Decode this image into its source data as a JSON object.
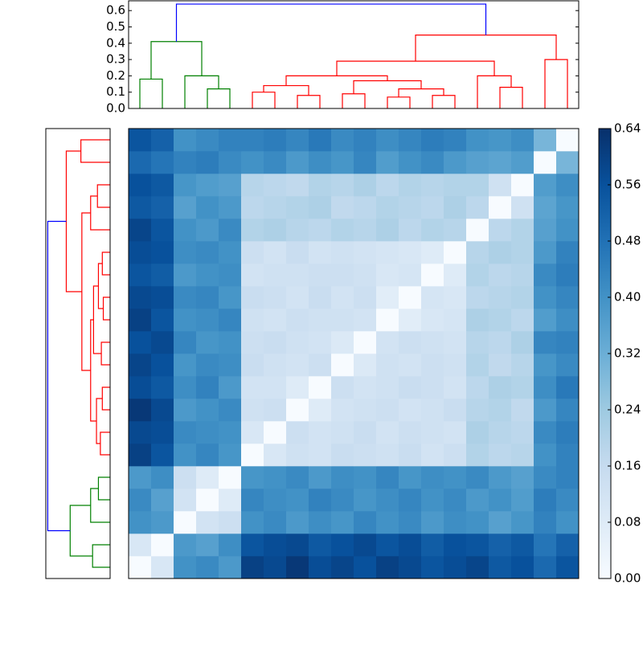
{
  "chart_data": {
    "type": "clustermap",
    "matrix": [
      [
        0,
        0.1,
        0.4,
        0.42,
        0.38,
        0.6,
        0.58,
        0.62,
        0.57,
        0.59,
        0.56,
        0.6,
        0.58,
        0.55,
        0.57,
        0.59,
        0.54,
        0.56,
        0.5,
        0.55
      ],
      [
        0.1,
        0,
        0.38,
        0.36,
        0.41,
        0.55,
        0.57,
        0.58,
        0.54,
        0.56,
        0.58,
        0.55,
        0.57,
        0.53,
        0.56,
        0.55,
        0.52,
        0.54,
        0.47,
        0.52
      ],
      [
        0.4,
        0.38,
        0,
        0.12,
        0.14,
        0.4,
        0.42,
        0.38,
        0.41,
        0.39,
        0.43,
        0.4,
        0.42,
        0.38,
        0.41,
        0.4,
        0.36,
        0.39,
        0.44,
        0.4
      ],
      [
        0.42,
        0.36,
        0.12,
        0,
        0.08,
        0.43,
        0.41,
        0.4,
        0.44,
        0.42,
        0.39,
        0.41,
        0.43,
        0.4,
        0.42,
        0.38,
        0.4,
        0.37,
        0.45,
        0.42
      ],
      [
        0.38,
        0.41,
        0.14,
        0.08,
        0,
        0.39,
        0.4,
        0.42,
        0.38,
        0.41,
        0.4,
        0.43,
        0.39,
        0.41,
        0.4,
        0.42,
        0.38,
        0.36,
        0.42,
        0.44
      ],
      [
        0.6,
        0.55,
        0.4,
        0.43,
        0.39,
        0,
        0.1,
        0.13,
        0.12,
        0.15,
        0.14,
        0.13,
        0.15,
        0.12,
        0.14,
        0.2,
        0.18,
        0.19,
        0.4,
        0.44
      ],
      [
        0.58,
        0.57,
        0.42,
        0.41,
        0.4,
        0.1,
        0,
        0.14,
        0.12,
        0.13,
        0.15,
        0.12,
        0.14,
        0.13,
        0.12,
        0.21,
        0.19,
        0.18,
        0.42,
        0.45
      ],
      [
        0.62,
        0.58,
        0.38,
        0.4,
        0.42,
        0.13,
        0.14,
        0,
        0.08,
        0.12,
        0.13,
        0.14,
        0.12,
        0.13,
        0.15,
        0.19,
        0.2,
        0.17,
        0.38,
        0.43
      ],
      [
        0.57,
        0.54,
        0.41,
        0.44,
        0.38,
        0.12,
        0.12,
        0.08,
        0,
        0.14,
        0.12,
        0.13,
        0.15,
        0.14,
        0.12,
        0.18,
        0.21,
        0.2,
        0.41,
        0.46
      ],
      [
        0.59,
        0.56,
        0.39,
        0.42,
        0.41,
        0.15,
        0.13,
        0.12,
        0.14,
        0,
        0.09,
        0.13,
        0.12,
        0.14,
        0.13,
        0.2,
        0.17,
        0.19,
        0.39,
        0.42
      ],
      [
        0.56,
        0.58,
        0.43,
        0.39,
        0.4,
        0.14,
        0.15,
        0.13,
        0.12,
        0.09,
        0,
        0.12,
        0.14,
        0.13,
        0.12,
        0.19,
        0.18,
        0.21,
        0.43,
        0.44
      ],
      [
        0.6,
        0.55,
        0.4,
        0.41,
        0.43,
        0.13,
        0.12,
        0.14,
        0.13,
        0.13,
        0.12,
        0,
        0.07,
        0.1,
        0.11,
        0.21,
        0.2,
        0.18,
        0.37,
        0.41
      ],
      [
        0.58,
        0.57,
        0.42,
        0.43,
        0.39,
        0.15,
        0.14,
        0.12,
        0.15,
        0.12,
        0.14,
        0.07,
        0,
        0.11,
        0.1,
        0.18,
        0.19,
        0.2,
        0.4,
        0.43
      ],
      [
        0.55,
        0.53,
        0.38,
        0.4,
        0.41,
        0.12,
        0.13,
        0.13,
        0.14,
        0.14,
        0.13,
        0.1,
        0.11,
        0,
        0.08,
        0.2,
        0.18,
        0.19,
        0.42,
        0.45
      ],
      [
        0.57,
        0.56,
        0.41,
        0.42,
        0.4,
        0.14,
        0.12,
        0.15,
        0.12,
        0.13,
        0.12,
        0.11,
        0.1,
        0.08,
        0,
        0.19,
        0.21,
        0.2,
        0.38,
        0.44
      ],
      [
        0.59,
        0.55,
        0.4,
        0.38,
        0.42,
        0.2,
        0.21,
        0.19,
        0.18,
        0.2,
        0.19,
        0.21,
        0.18,
        0.2,
        0.19,
        0,
        0.18,
        0.2,
        0.36,
        0.4
      ],
      [
        0.54,
        0.52,
        0.36,
        0.4,
        0.38,
        0.18,
        0.19,
        0.2,
        0.21,
        0.17,
        0.18,
        0.2,
        0.19,
        0.18,
        0.21,
        0.18,
        0,
        0.13,
        0.35,
        0.39
      ],
      [
        0.56,
        0.54,
        0.39,
        0.37,
        0.36,
        0.19,
        0.18,
        0.17,
        0.2,
        0.19,
        0.21,
        0.18,
        0.2,
        0.19,
        0.2,
        0.2,
        0.13,
        0,
        0.37,
        0.41
      ],
      [
        0.5,
        0.47,
        0.44,
        0.45,
        0.42,
        0.4,
        0.42,
        0.38,
        0.41,
        0.39,
        0.43,
        0.37,
        0.4,
        0.42,
        0.38,
        0.36,
        0.35,
        0.37,
        0,
        0.3
      ],
      [
        0.55,
        0.52,
        0.4,
        0.42,
        0.44,
        0.44,
        0.45,
        0.43,
        0.46,
        0.42,
        0.44,
        0.41,
        0.43,
        0.45,
        0.44,
        0.4,
        0.39,
        0.41,
        0.3,
        0
      ]
    ],
    "colormap": [
      "#f7fbff",
      "#deebf7",
      "#c6dbef",
      "#9ecae1",
      "#6baed6",
      "#4292c6",
      "#2171b5",
      "#08519c",
      "#08306b"
    ],
    "dendrogram": {
      "links": [
        [
          3,
          4,
          0.12
        ],
        [
          2,
          20,
          0.2
        ],
        [
          0,
          1,
          0.18
        ],
        [
          22,
          21,
          0.41
        ],
        [
          5,
          6,
          0.1
        ],
        [
          7,
          8,
          0.08
        ],
        [
          24,
          25,
          0.14
        ],
        [
          9,
          10,
          0.09
        ],
        [
          11,
          12,
          0.07
        ],
        [
          13,
          14,
          0.08
        ],
        [
          28,
          29,
          0.12
        ],
        [
          27,
          30,
          0.17
        ],
        [
          26,
          31,
          0.2
        ],
        [
          16,
          17,
          0.13
        ],
        [
          15,
          33,
          0.2
        ],
        [
          32,
          34,
          0.29
        ],
        [
          18,
          19,
          0.3
        ],
        [
          35,
          36,
          0.45
        ],
        [
          23,
          37,
          0.64
        ]
      ],
      "link_colors": [
        "#008000",
        "#008000",
        "#008000",
        "#008000",
        "#ff0000",
        "#ff0000",
        "#ff0000",
        "#ff0000",
        "#ff0000",
        "#ff0000",
        "#ff0000",
        "#ff0000",
        "#ff0000",
        "#ff0000",
        "#ff0000",
        "#ff0000",
        "#ff0000",
        "#ff0000",
        "#0000ff"
      ],
      "ylim": [
        0,
        0.66
      ],
      "yticks": [
        {
          "value": 0,
          "label": "0.0"
        },
        0.1,
        0.2,
        0.3,
        0.4,
        0.5,
        0.6
      ]
    },
    "colorbar": {
      "lim": [
        0,
        0.64
      ],
      "ticks": [
        {
          "value": 0,
          "label": "0.00"
        },
        0.08,
        0.16,
        0.24,
        0.32,
        {
          "value": 0.4,
          "label": "0.40"
        },
        0.48,
        0.56,
        0.64
      ]
    }
  }
}
